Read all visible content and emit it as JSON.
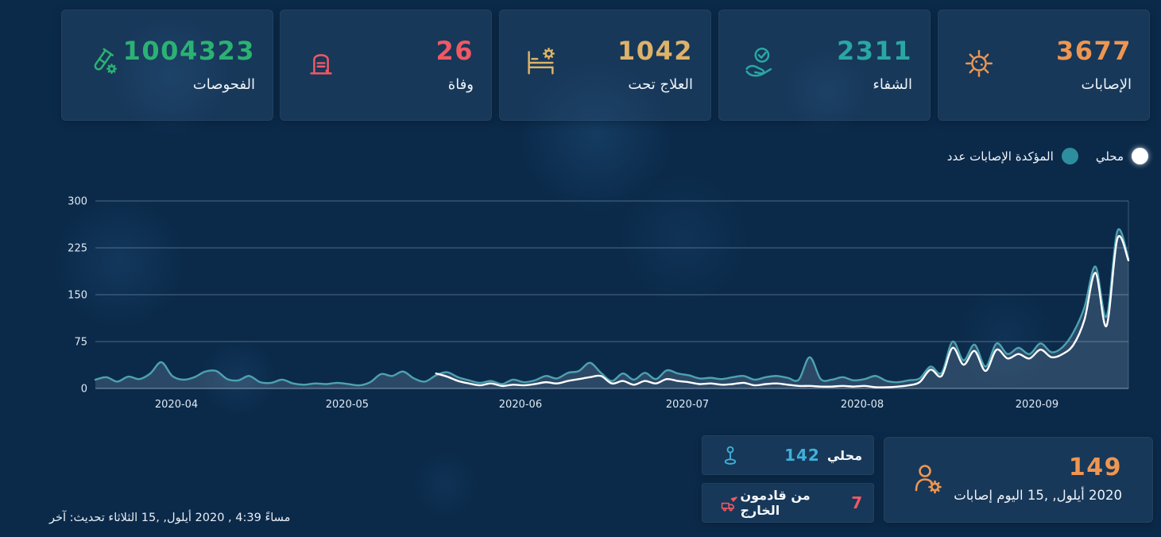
{
  "colors": {
    "background": "#0b2a4a",
    "grid": "rgba(203,219,234,0.35)",
    "axis_text": "#dfe9f2"
  },
  "stats_cards": [
    {
      "id": "infections",
      "label": "الإصابات",
      "value": "3677",
      "color": "#ee9651",
      "icon": "virus-icon"
    },
    {
      "id": "recovered",
      "label": "الشفاء",
      "value": "2311",
      "color": "#2aa7a4",
      "icon": "hand-check-icon"
    },
    {
      "id": "under-treatment",
      "label": "تحت العلاج",
      "value": "1042",
      "color": "#ddb269",
      "icon": "bed-gear-icon"
    },
    {
      "id": "deaths",
      "label": "وفاة",
      "value": "26",
      "color": "#ef5965",
      "icon": "tombstone-icon"
    },
    {
      "id": "tests",
      "label": "الفحوصات",
      "value": "1004323",
      "color": "#2bb273",
      "icon": "test-tube-icon"
    }
  ],
  "legend": {
    "items": [
      {
        "label": "عدد الإصابات المؤكدة",
        "color": "#2d8e9d",
        "glow": false
      },
      {
        "label": "محلي",
        "color": "#ffffff",
        "glow": true
      }
    ]
  },
  "chart_data": {
    "type": "line",
    "title": "",
    "xlabel": "",
    "ylabel": "",
    "x_range": {
      "start": "2020-03-17",
      "end": "2020-09-15"
    },
    "x_ticks": [
      {
        "label": "2020-04",
        "f": 0.0785
      },
      {
        "label": "2020-05",
        "f": 0.2438
      },
      {
        "label": "2020-06",
        "f": 0.4115
      },
      {
        "label": "2020-07",
        "f": 0.5731
      },
      {
        "label": "2020-08",
        "f": 0.7423
      },
      {
        "label": "2020-09",
        "f": 0.9115
      }
    ],
    "y_ticks": [
      0,
      75,
      150,
      225,
      300
    ],
    "ylim": [
      0,
      300
    ],
    "grid": true,
    "legend_position": "top-right",
    "series": [
      {
        "name": "عدد الإصابات المؤكدة",
        "color": "#4da2b0",
        "fill": "rgba(173,199,222,0.20)",
        "values": [
          14,
          18,
          11,
          19,
          15,
          24,
          42,
          20,
          14,
          18,
          27,
          28,
          15,
          13,
          20,
          10,
          9,
          14,
          8,
          6,
          8,
          7,
          9,
          7,
          5,
          10,
          23,
          20,
          27,
          16,
          11,
          21,
          26,
          18,
          13,
          9,
          12,
          7,
          14,
          10,
          13,
          20,
          16,
          25,
          28,
          41,
          25,
          12,
          24,
          14,
          25,
          15,
          29,
          24,
          21,
          16,
          17,
          15,
          18,
          20,
          14,
          18,
          20,
          17,
          14,
          50,
          15,
          14,
          18,
          13,
          15,
          20,
          12,
          10,
          13,
          16,
          35,
          25,
          75,
          45,
          70,
          35,
          72,
          55,
          65,
          55,
          72,
          58,
          66,
          90,
          130,
          195,
          115,
          252,
          208
        ]
      },
      {
        "name": "محلي",
        "color": "#ffffff",
        "fill": null,
        "values": [
          null,
          null,
          null,
          null,
          null,
          null,
          null,
          null,
          null,
          null,
          null,
          null,
          null,
          null,
          null,
          null,
          null,
          null,
          null,
          null,
          null,
          null,
          null,
          null,
          null,
          null,
          null,
          null,
          null,
          null,
          null,
          24,
          19,
          12,
          8,
          5,
          8,
          4,
          6,
          5,
          7,
          10,
          8,
          12,
          15,
          18,
          20,
          8,
          12,
          6,
          12,
          8,
          15,
          12,
          10,
          7,
          8,
          6,
          7,
          9,
          5,
          7,
          8,
          6,
          4,
          4,
          3,
          3,
          4,
          3,
          4,
          2,
          2,
          3,
          5,
          10,
          30,
          20,
          65,
          38,
          60,
          28,
          62,
          48,
          55,
          48,
          62,
          50,
          55,
          70,
          110,
          185,
          100,
          240,
          205
        ]
      }
    ]
  },
  "daily": {
    "local": {
      "label": "محلي",
      "value": "142",
      "color": "#3fb0d9",
      "icon": "map-pin-icon"
    },
    "abroad": {
      "label": "قادمون من الخارج",
      "value": "7",
      "color": "#ef5965",
      "icon": "truck-plane-icon"
    },
    "today": {
      "value": "149",
      "label": "إصابات اليوم 15, أيلول, 2020",
      "color": "#ee9651",
      "icon": "person-gear-icon"
    }
  },
  "footer": {
    "last_update": "آخر تحديث: الثلاثاء 15, أيلول, 2020 , 4:39 مساءً"
  }
}
